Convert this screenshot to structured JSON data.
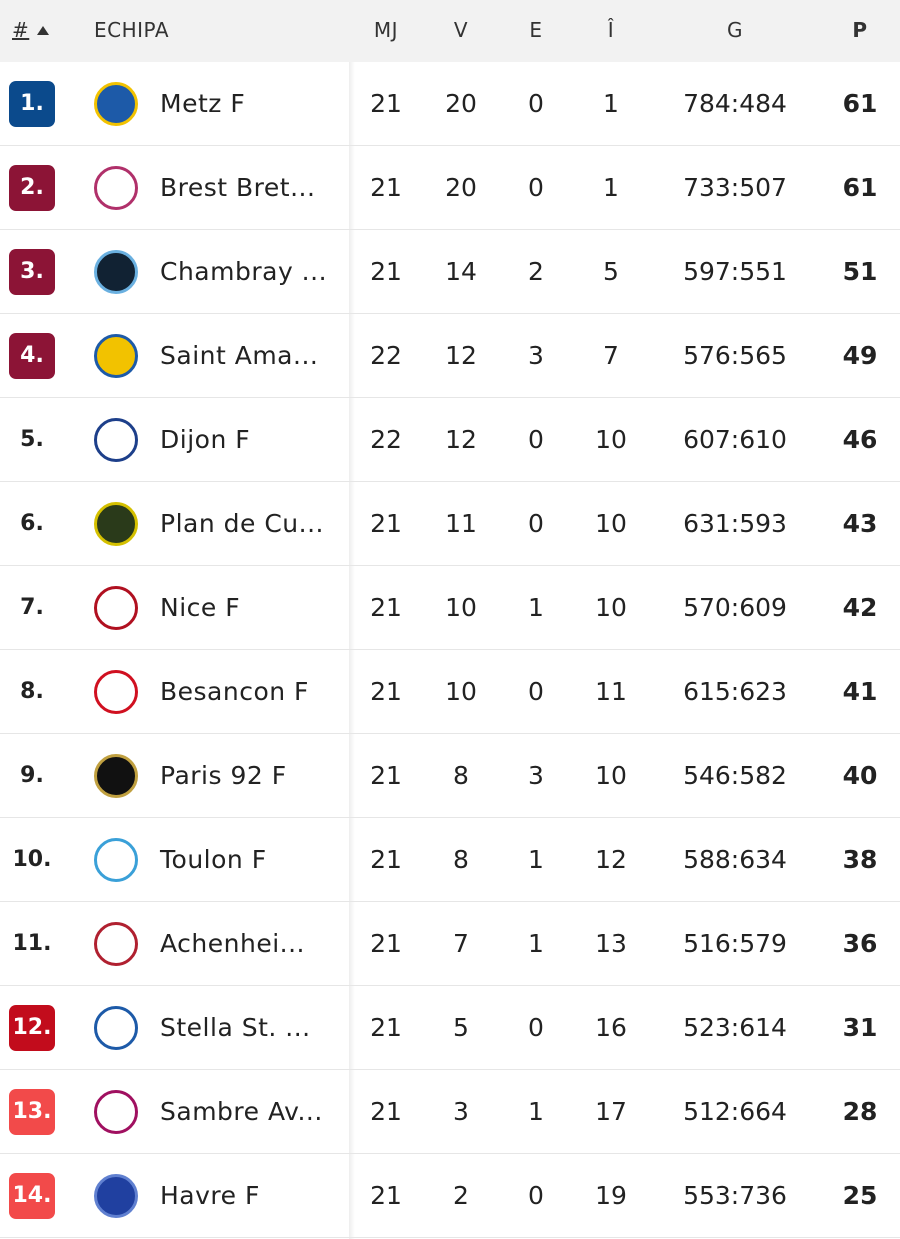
{
  "table": {
    "header": [
      "#",
      "ECHIPA",
      "MJ",
      "V",
      "E",
      "Î",
      "G",
      "P"
    ],
    "rows": [
      [
        "1.",
        "Metz F",
        21,
        20,
        0,
        1,
        "784:484",
        61
      ],
      [
        "2.",
        "Brest Bret...",
        21,
        20,
        0,
        1,
        "733:507",
        61
      ],
      [
        "3.",
        "Chambray ...",
        21,
        14,
        2,
        5,
        "597:551",
        51
      ],
      [
        "4.",
        "Saint Ama...",
        22,
        12,
        3,
        7,
        "576:565",
        49
      ],
      [
        "5.",
        "Dijon F",
        22,
        12,
        0,
        10,
        "607:610",
        46
      ],
      [
        "6.",
        "Plan de Cu...",
        21,
        11,
        0,
        10,
        "631:593",
        43
      ],
      [
        "7.",
        "Nice F",
        21,
        10,
        1,
        10,
        "570:609",
        42
      ],
      [
        "8.",
        "Besancon F",
        21,
        10,
        0,
        11,
        "615:623",
        41
      ],
      [
        "9.",
        "Paris 92 F",
        21,
        8,
        3,
        10,
        "546:582",
        40
      ],
      [
        "10.",
        "Toulon F",
        21,
        8,
        1,
        12,
        "588:634",
        38
      ],
      [
        "11.",
        "Achenhei...",
        21,
        7,
        1,
        13,
        "516:579",
        36
      ],
      [
        "12.",
        "Stella St. ...",
        21,
        5,
        0,
        16,
        "523:614",
        31
      ],
      [
        "13.",
        "Sambre Av...",
        21,
        3,
        1,
        17,
        "512:664",
        28
      ],
      [
        "14.",
        "Havre F",
        21,
        2,
        0,
        19,
        "553:736",
        25
      ]
    ]
  }
}
